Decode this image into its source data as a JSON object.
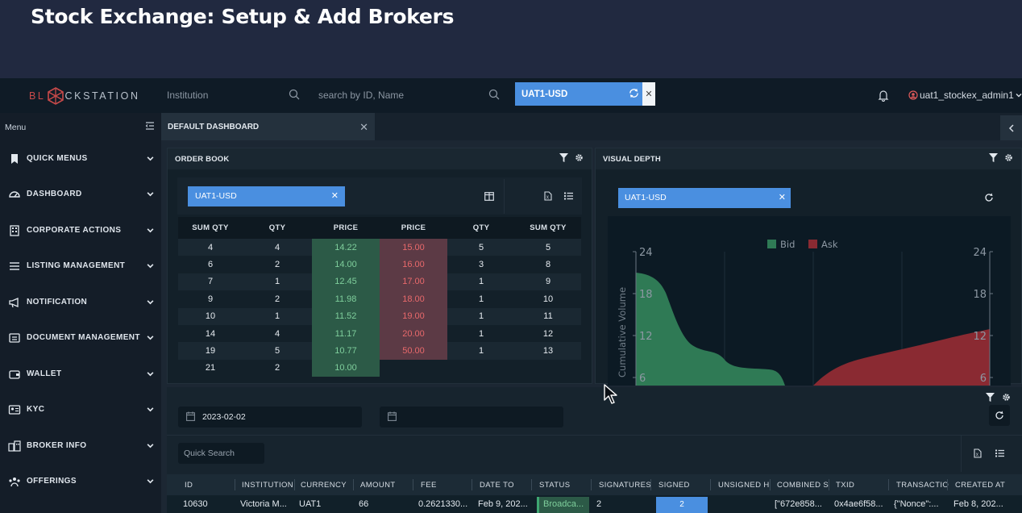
{
  "banner": {
    "title": "Stock Exchange: Setup & Add Brokers"
  },
  "topbar": {
    "logo_left": "BL",
    "logo_right": "CKSTATION",
    "institution_placeholder": "Institution",
    "search_placeholder": "search by ID, Name",
    "currency_tag": "UAT1-USD",
    "username": "uat1_stockex_admin1"
  },
  "sidebar": {
    "header": "Menu",
    "items": [
      {
        "label": "QUICK MENUS",
        "icon": "bookmark-icon"
      },
      {
        "label": "DASHBOARD",
        "icon": "dashboard-icon"
      },
      {
        "label": "CORPORATE ACTIONS",
        "icon": "building-icon"
      },
      {
        "label": "LISTING MANAGEMENT",
        "icon": "list-icon"
      },
      {
        "label": "NOTIFICATION",
        "icon": "megaphone-icon"
      },
      {
        "label": "DOCUMENT MANAGEMENT",
        "icon": "document-icon"
      },
      {
        "label": "WALLET",
        "icon": "wallet-icon"
      },
      {
        "label": "KYC",
        "icon": "id-card-icon"
      },
      {
        "label": "BROKER INFO",
        "icon": "broker-icon"
      },
      {
        "label": "OFFERINGS",
        "icon": "offerings-icon"
      }
    ]
  },
  "dashboard": {
    "tab_label": "DEFAULT DASHBOARD"
  },
  "order_book": {
    "title": "ORDER BOOK",
    "instrument": "UAT1-USD",
    "columns": [
      "SUM QTY",
      "QTY",
      "PRICE",
      "PRICE",
      "QTY",
      "SUM QTY"
    ],
    "rows": [
      [
        "4",
        "4",
        "14.22",
        "15.00",
        "5",
        "5"
      ],
      [
        "6",
        "2",
        "14.00",
        "16.00",
        "3",
        "8"
      ],
      [
        "7",
        "1",
        "12.45",
        "17.00",
        "1",
        "9"
      ],
      [
        "9",
        "2",
        "11.98",
        "18.00",
        "1",
        "10"
      ],
      [
        "10",
        "1",
        "11.52",
        "19.00",
        "1",
        "11"
      ],
      [
        "14",
        "4",
        "11.17",
        "20.00",
        "1",
        "12"
      ],
      [
        "19",
        "5",
        "10.77",
        "50.00",
        "1",
        "13"
      ],
      [
        "21",
        "2",
        "10.00",
        "",
        "",
        ""
      ]
    ]
  },
  "visual_depth": {
    "title": "VISUAL DEPTH",
    "instrument": "UAT1-USD",
    "legend_bid": "Bid",
    "legend_ask": "Ask",
    "y_label": "Cumulative Volume",
    "left_ticks": [
      "24",
      "18",
      "12",
      "6"
    ],
    "right_ticks": [
      "24",
      "18",
      "12",
      "6"
    ],
    "colors": {
      "bid": "#2f7a55",
      "ask": "#8a2a32"
    }
  },
  "transactions": {
    "date_from": "2023-02-02",
    "date_to": "",
    "quick_search_placeholder": "Quick Search",
    "columns": [
      "ID",
      "INSTITUTION",
      "CURRENCY",
      "AMOUNT",
      "FEE",
      "DATE TO",
      "STATUS",
      "SIGNATURES",
      "SIGNED",
      "UNSIGNED H",
      "COMBINED S",
      "TXID",
      "TRANSACTIO",
      "CREATED AT"
    ],
    "row": {
      "id": "10630",
      "institution": "Victoria M...",
      "currency": "UAT1",
      "amount": "66",
      "fee": "0.2621330...",
      "date_to": "Feb 9, 202...",
      "status": "Broadca...",
      "signatures": "2",
      "signed": "2",
      "unsigned": "",
      "combined": "[\"672e858...",
      "txid": "0x4ae6f58...",
      "transaction": "{\"Nonce\":...",
      "created_at": "Feb 8, 202..."
    }
  }
}
